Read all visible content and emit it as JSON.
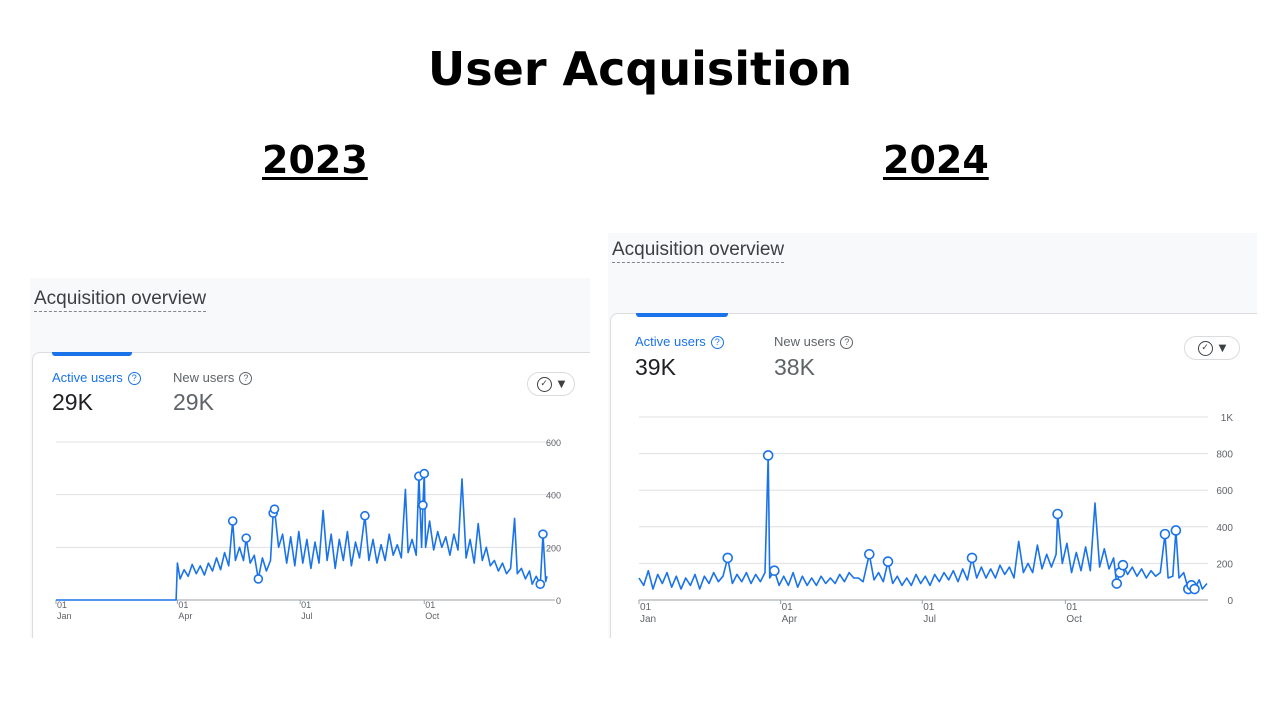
{
  "title": "User Acquisition",
  "panels": [
    {
      "year": "2023",
      "heading": "Acquisition overview",
      "metrics": [
        {
          "label": "Active users",
          "value": "29K"
        },
        {
          "label": "New users",
          "value": "29K"
        }
      ]
    },
    {
      "year": "2024",
      "heading": "Acquisition overview",
      "metrics": [
        {
          "label": "Active users",
          "value": "39K"
        },
        {
          "label": "New users",
          "value": "38K"
        }
      ]
    }
  ],
  "chart_data": [
    {
      "type": "line",
      "series": [
        {
          "name": "Active users",
          "color": "#1a73e8"
        }
      ],
      "y_ticks": [
        0,
        200,
        400,
        600
      ],
      "ylim": [
        0,
        600
      ],
      "x_ticks": [
        {
          "day": "01",
          "month": "Jan",
          "date": "2023-01-01"
        },
        {
          "day": "01",
          "month": "Apr",
          "date": "2023-04-01"
        },
        {
          "day": "01",
          "month": "Jul",
          "date": "2023-07-01"
        },
        {
          "day": "01",
          "month": "Oct",
          "date": "2023-10-01"
        }
      ],
      "grid": true,
      "points": [
        [
          "2023-01-01",
          0
        ],
        [
          "2023-02-01",
          0
        ],
        [
          "2023-03-01",
          0
        ],
        [
          "2023-03-31",
          0
        ],
        [
          "2023-04-01",
          140
        ],
        [
          "2023-04-03",
          80
        ],
        [
          "2023-04-06",
          115
        ],
        [
          "2023-04-09",
          90
        ],
        [
          "2023-04-12",
          135
        ],
        [
          "2023-04-15",
          100
        ],
        [
          "2023-04-18",
          130
        ],
        [
          "2023-04-21",
          95
        ],
        [
          "2023-04-24",
          140
        ],
        [
          "2023-04-27",
          110
        ],
        [
          "2023-04-30",
          160
        ],
        [
          "2023-05-03",
          115
        ],
        [
          "2023-05-06",
          180
        ],
        [
          "2023-05-09",
          130
        ],
        [
          "2023-05-12",
          300
        ],
        [
          "2023-05-14",
          150
        ],
        [
          "2023-05-17",
          200
        ],
        [
          "2023-05-20",
          150
        ],
        [
          "2023-05-22",
          235
        ],
        [
          "2023-05-25",
          140
        ],
        [
          "2023-05-28",
          170
        ],
        [
          "2023-05-31",
          80
        ],
        [
          "2023-06-03",
          160
        ],
        [
          "2023-06-06",
          110
        ],
        [
          "2023-06-09",
          150
        ],
        [
          "2023-06-11",
          330
        ],
        [
          "2023-06-12",
          345
        ],
        [
          "2023-06-15",
          200
        ],
        [
          "2023-06-18",
          250
        ],
        [
          "2023-06-21",
          140
        ],
        [
          "2023-06-24",
          240
        ],
        [
          "2023-06-27",
          130
        ],
        [
          "2023-06-30",
          260
        ],
        [
          "2023-07-03",
          140
        ],
        [
          "2023-07-06",
          230
        ],
        [
          "2023-07-09",
          120
        ],
        [
          "2023-07-12",
          220
        ],
        [
          "2023-07-15",
          140
        ],
        [
          "2023-07-18",
          340
        ],
        [
          "2023-07-21",
          150
        ],
        [
          "2023-07-24",
          250
        ],
        [
          "2023-07-27",
          120
        ],
        [
          "2023-07-30",
          230
        ],
        [
          "2023-08-02",
          150
        ],
        [
          "2023-08-05",
          260
        ],
        [
          "2023-08-08",
          130
        ],
        [
          "2023-08-11",
          220
        ],
        [
          "2023-08-14",
          160
        ],
        [
          "2023-08-18",
          320
        ],
        [
          "2023-08-21",
          150
        ],
        [
          "2023-08-24",
          230
        ],
        [
          "2023-08-27",
          140
        ],
        [
          "2023-08-30",
          210
        ],
        [
          "2023-09-02",
          150
        ],
        [
          "2023-09-05",
          250
        ],
        [
          "2023-09-08",
          170
        ],
        [
          "2023-09-11",
          210
        ],
        [
          "2023-09-14",
          160
        ],
        [
          "2023-09-17",
          420
        ],
        [
          "2023-09-19",
          180
        ],
        [
          "2023-09-22",
          230
        ],
        [
          "2023-09-25",
          170
        ],
        [
          "2023-09-27",
          470
        ],
        [
          "2023-09-29",
          200
        ],
        [
          "2023-09-30",
          360
        ],
        [
          "2023-10-01",
          480
        ],
        [
          "2023-10-02",
          200
        ],
        [
          "2023-10-05",
          300
        ],
        [
          "2023-10-08",
          190
        ],
        [
          "2023-10-11",
          260
        ],
        [
          "2023-10-14",
          200
        ],
        [
          "2023-10-17",
          240
        ],
        [
          "2023-10-20",
          170
        ],
        [
          "2023-10-23",
          250
        ],
        [
          "2023-10-26",
          190
        ],
        [
          "2023-10-29",
          460
        ],
        [
          "2023-11-01",
          160
        ],
        [
          "2023-11-04",
          230
        ],
        [
          "2023-11-07",
          140
        ],
        [
          "2023-11-10",
          290
        ],
        [
          "2023-11-13",
          150
        ],
        [
          "2023-11-16",
          200
        ],
        [
          "2023-11-19",
          130
        ],
        [
          "2023-11-22",
          150
        ],
        [
          "2023-11-25",
          110
        ],
        [
          "2023-11-28",
          140
        ],
        [
          "2023-12-01",
          100
        ],
        [
          "2023-12-04",
          120
        ],
        [
          "2023-12-07",
          310
        ],
        [
          "2023-12-09",
          100
        ],
        [
          "2023-12-12",
          120
        ],
        [
          "2023-12-15",
          80
        ],
        [
          "2023-12-18",
          110
        ],
        [
          "2023-12-20",
          60
        ],
        [
          "2023-12-23",
          90
        ],
        [
          "2023-12-26",
          60
        ],
        [
          "2023-12-28",
          250
        ],
        [
          "2023-12-30",
          70
        ],
        [
          "2023-12-31",
          90
        ]
      ],
      "markers": [
        [
          "2023-05-12",
          300
        ],
        [
          "2023-05-22",
          235
        ],
        [
          "2023-05-31",
          80
        ],
        [
          "2023-06-11",
          330
        ],
        [
          "2023-06-12",
          345
        ],
        [
          "2023-08-18",
          320
        ],
        [
          "2023-09-27",
          470
        ],
        [
          "2023-09-30",
          360
        ],
        [
          "2023-10-01",
          480
        ],
        [
          "2023-12-26",
          60
        ],
        [
          "2023-12-28",
          250
        ]
      ]
    },
    {
      "type": "line",
      "series": [
        {
          "name": "Active users",
          "color": "#1a73e8"
        }
      ],
      "y_ticks": [
        0,
        200,
        400,
        600,
        800,
        1000
      ],
      "y_tick_labels": [
        "0",
        "200",
        "400",
        "600",
        "800",
        "1K"
      ],
      "ylim": [
        0,
        1000
      ],
      "x_ticks": [
        {
          "day": "01",
          "month": "Jan",
          "date": "2024-01-01"
        },
        {
          "day": "01",
          "month": "Apr",
          "date": "2024-04-01"
        },
        {
          "day": "01",
          "month": "Jul",
          "date": "2024-07-01"
        },
        {
          "day": "01",
          "month": "Oct",
          "date": "2024-10-01"
        }
      ],
      "grid": true,
      "points": [
        [
          "2024-01-01",
          120
        ],
        [
          "2024-01-04",
          80
        ],
        [
          "2024-01-07",
          160
        ],
        [
          "2024-01-10",
          60
        ],
        [
          "2024-01-13",
          140
        ],
        [
          "2024-01-16",
          90
        ],
        [
          "2024-01-19",
          150
        ],
        [
          "2024-01-22",
          70
        ],
        [
          "2024-01-25",
          130
        ],
        [
          "2024-01-28",
          60
        ],
        [
          "2024-01-31",
          120
        ],
        [
          "2024-02-03",
          80
        ],
        [
          "2024-02-06",
          140
        ],
        [
          "2024-02-09",
          60
        ],
        [
          "2024-02-12",
          130
        ],
        [
          "2024-02-15",
          90
        ],
        [
          "2024-02-18",
          150
        ],
        [
          "2024-02-21",
          100
        ],
        [
          "2024-02-24",
          130
        ],
        [
          "2024-02-27",
          230
        ],
        [
          "2024-03-01",
          90
        ],
        [
          "2024-03-04",
          140
        ],
        [
          "2024-03-07",
          100
        ],
        [
          "2024-03-10",
          150
        ],
        [
          "2024-03-13",
          90
        ],
        [
          "2024-03-16",
          140
        ],
        [
          "2024-03-19",
          100
        ],
        [
          "2024-03-22",
          150
        ],
        [
          "2024-03-24",
          790
        ],
        [
          "2024-03-25",
          120
        ],
        [
          "2024-03-28",
          160
        ],
        [
          "2024-03-31",
          80
        ],
        [
          "2024-04-03",
          130
        ],
        [
          "2024-04-06",
          80
        ],
        [
          "2024-04-09",
          150
        ],
        [
          "2024-04-12",
          70
        ],
        [
          "2024-04-15",
          130
        ],
        [
          "2024-04-18",
          80
        ],
        [
          "2024-04-21",
          120
        ],
        [
          "2024-04-24",
          80
        ],
        [
          "2024-04-27",
          130
        ],
        [
          "2024-04-30",
          90
        ],
        [
          "2024-05-03",
          120
        ],
        [
          "2024-05-06",
          90
        ],
        [
          "2024-05-09",
          140
        ],
        [
          "2024-05-12",
          100
        ],
        [
          "2024-05-15",
          150
        ],
        [
          "2024-05-18",
          120
        ],
        [
          "2024-05-21",
          120
        ],
        [
          "2024-05-24",
          100
        ],
        [
          "2024-05-28",
          250
        ],
        [
          "2024-05-31",
          110
        ],
        [
          "2024-06-03",
          150
        ],
        [
          "2024-06-06",
          100
        ],
        [
          "2024-06-09",
          210
        ],
        [
          "2024-06-12",
          90
        ],
        [
          "2024-06-15",
          130
        ],
        [
          "2024-06-18",
          80
        ],
        [
          "2024-06-21",
          120
        ],
        [
          "2024-06-24",
          80
        ],
        [
          "2024-06-27",
          140
        ],
        [
          "2024-06-30",
          90
        ],
        [
          "2024-07-03",
          130
        ],
        [
          "2024-07-06",
          80
        ],
        [
          "2024-07-09",
          140
        ],
        [
          "2024-07-12",
          100
        ],
        [
          "2024-07-15",
          150
        ],
        [
          "2024-07-18",
          110
        ],
        [
          "2024-07-21",
          160
        ],
        [
          "2024-07-24",
          100
        ],
        [
          "2024-07-27",
          170
        ],
        [
          "2024-07-30",
          110
        ],
        [
          "2024-08-02",
          230
        ],
        [
          "2024-08-05",
          120
        ],
        [
          "2024-08-08",
          180
        ],
        [
          "2024-08-11",
          120
        ],
        [
          "2024-08-14",
          170
        ],
        [
          "2024-08-17",
          120
        ],
        [
          "2024-08-20",
          190
        ],
        [
          "2024-08-23",
          140
        ],
        [
          "2024-08-26",
          180
        ],
        [
          "2024-08-29",
          120
        ],
        [
          "2024-09-01",
          320
        ],
        [
          "2024-09-04",
          150
        ],
        [
          "2024-09-07",
          200
        ],
        [
          "2024-09-10",
          150
        ],
        [
          "2024-09-13",
          300
        ],
        [
          "2024-09-16",
          170
        ],
        [
          "2024-09-19",
          250
        ],
        [
          "2024-09-22",
          180
        ],
        [
          "2024-09-25",
          250
        ],
        [
          "2024-09-26",
          470
        ],
        [
          "2024-09-29",
          200
        ],
        [
          "2024-10-02",
          310
        ],
        [
          "2024-10-05",
          150
        ],
        [
          "2024-10-08",
          260
        ],
        [
          "2024-10-11",
          160
        ],
        [
          "2024-10-14",
          290
        ],
        [
          "2024-10-17",
          160
        ],
        [
          "2024-10-20",
          530
        ],
        [
          "2024-10-23",
          180
        ],
        [
          "2024-10-26",
          280
        ],
        [
          "2024-10-29",
          170
        ],
        [
          "2024-11-01",
          230
        ],
        [
          "2024-11-03",
          90
        ],
        [
          "2024-11-05",
          150
        ],
        [
          "2024-11-07",
          190
        ],
        [
          "2024-11-10",
          140
        ],
        [
          "2024-11-13",
          180
        ],
        [
          "2024-11-16",
          130
        ],
        [
          "2024-11-19",
          170
        ],
        [
          "2024-11-22",
          120
        ],
        [
          "2024-11-25",
          160
        ],
        [
          "2024-11-28",
          130
        ],
        [
          "2024-12-01",
          150
        ],
        [
          "2024-12-04",
          360
        ],
        [
          "2024-12-06",
          120
        ],
        [
          "2024-12-09",
          130
        ],
        [
          "2024-12-11",
          380
        ],
        [
          "2024-12-13",
          120
        ],
        [
          "2024-12-16",
          150
        ],
        [
          "2024-12-19",
          60
        ],
        [
          "2024-12-21",
          80
        ],
        [
          "2024-12-23",
          60
        ],
        [
          "2024-12-26",
          110
        ],
        [
          "2024-12-28",
          60
        ],
        [
          "2024-12-31",
          90
        ]
      ],
      "markers": [
        [
          "2024-02-27",
          230
        ],
        [
          "2024-03-24",
          790
        ],
        [
          "2024-03-28",
          160
        ],
        [
          "2024-05-28",
          250
        ],
        [
          "2024-06-09",
          210
        ],
        [
          "2024-08-02",
          230
        ],
        [
          "2024-09-26",
          470
        ],
        [
          "2024-11-03",
          90
        ],
        [
          "2024-11-05",
          150
        ],
        [
          "2024-11-07",
          190
        ],
        [
          "2024-12-04",
          360
        ],
        [
          "2024-12-11",
          380
        ],
        [
          "2024-12-19",
          60
        ],
        [
          "2024-12-21",
          80
        ],
        [
          "2024-12-23",
          60
        ]
      ]
    }
  ]
}
